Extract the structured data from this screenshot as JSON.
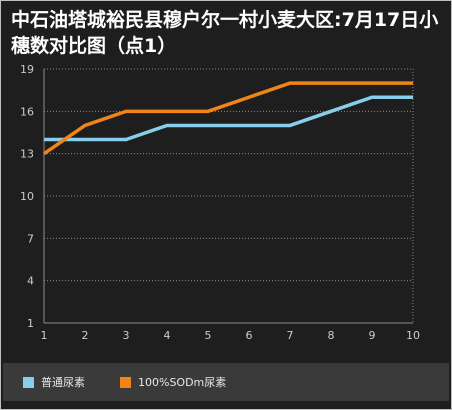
{
  "colors": {
    "background": "#1e1e1e",
    "series1": "#87ceeb",
    "series2": "#f08418",
    "grid": "#8a8a8a",
    "axis_text": "#cccccc",
    "legend_bg": "#3a3a3a"
  },
  "chart_data": {
    "type": "line",
    "title": "中石油塔城裕民县穆户尔一村小麦大区:7月17日小穗数对比图（点1）",
    "x": [
      1,
      2,
      3,
      4,
      5,
      6,
      7,
      8,
      9,
      10
    ],
    "xlabel": "",
    "ylabel": "",
    "ylim": [
      1,
      19
    ],
    "yticks": [
      1,
      4,
      7,
      10,
      13,
      16,
      19
    ],
    "grid": "horizontal dotted",
    "legend_position": "bottom",
    "series": [
      {
        "name": "普通尿素",
        "color": "#87ceeb",
        "values": [
          14,
          14,
          14,
          15,
          15,
          15,
          15,
          16,
          17,
          17
        ]
      },
      {
        "name": "100%SODm尿素",
        "color": "#f08418",
        "values": [
          13,
          15,
          16,
          16,
          16,
          17,
          18,
          18,
          18,
          18
        ]
      }
    ]
  }
}
